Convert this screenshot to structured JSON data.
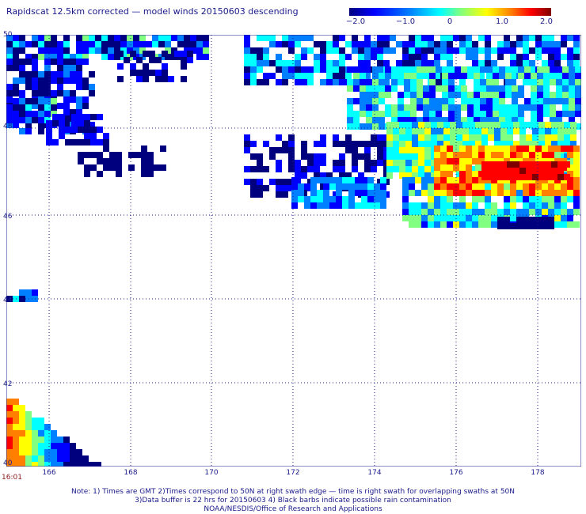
{
  "title": "Rapidscat 12.5km corrected — model winds 20150603 descending",
  "colorbar": {
    "ticks": [
      "−2.0",
      "−1.0",
      "0",
      "1.0",
      "2.0"
    ],
    "range": [
      -2.0,
      2.0
    ],
    "colors": [
      "#00007f",
      "#0000ff",
      "#0080ff",
      "#00ffff",
      "#80ff80",
      "#ffff00",
      "#ff8000",
      "#ff0000",
      "#7f0000"
    ]
  },
  "map": {
    "lat_labels": [
      "50",
      "48",
      "46",
      "44",
      "42",
      "40"
    ],
    "lon_labels": [
      "166",
      "168",
      "170",
      "172",
      "174",
      "176",
      "178"
    ],
    "lat_range": [
      40,
      50
    ],
    "lon_range": [
      164.7,
      179
    ],
    "grid": "dotted"
  },
  "time_label": "16:01",
  "notes": [
    "Note: 1) Times are GMT 2)Times correspond to 50N at right swath edge — time is right swath for overlapping swaths at 50N",
    "3)Data buffer is 22 hrs for 20150603 4) Black barbs indicate possible rain contamination",
    "NOAA/NESDIS/Office of Research and Applications"
  ]
}
